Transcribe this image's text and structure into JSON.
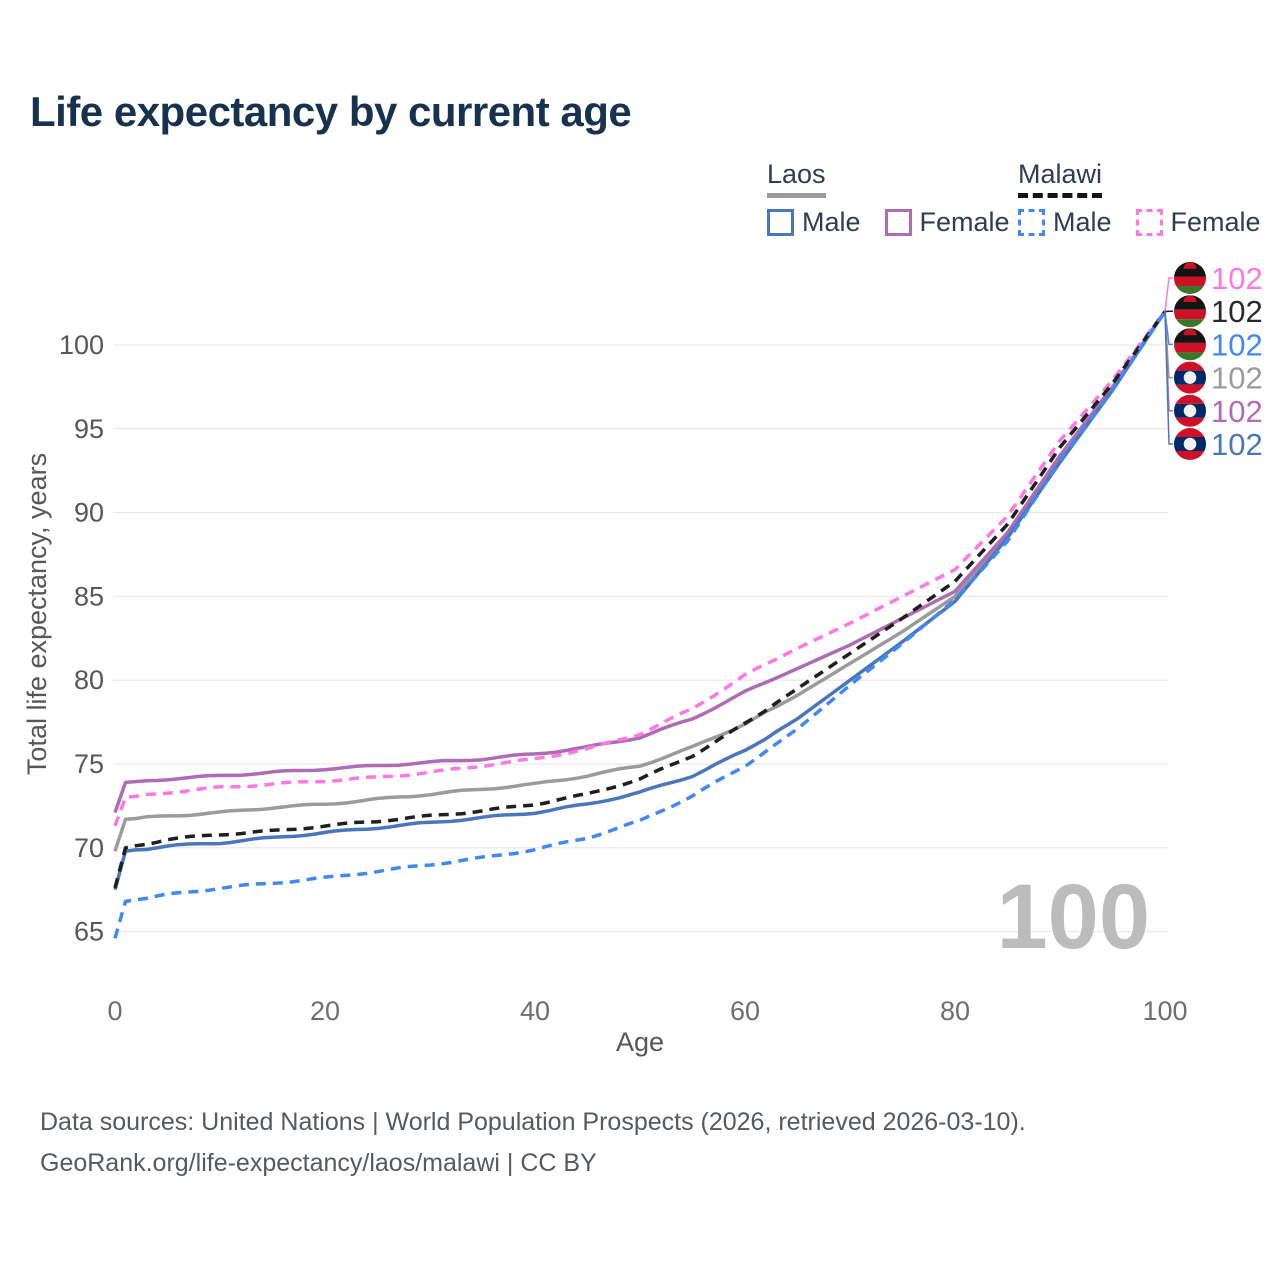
{
  "title": "Life expectancy by current age",
  "legend": {
    "groups": [
      {
        "name": "Laos",
        "line_style": "solid",
        "underline_color": "#9a9a9a",
        "items": [
          {
            "label": "Male",
            "color": "#4a77b9",
            "dashed": false
          },
          {
            "label": "Female",
            "color": "#af6cb4",
            "dashed": false
          }
        ]
      },
      {
        "name": "Malawi",
        "line_style": "dashed",
        "underline_color": "#141414",
        "items": [
          {
            "label": "Male",
            "color": "#4188f2",
            "dashed": true
          },
          {
            "label": "Female",
            "color": "#ff78e1",
            "dashed": true
          }
        ]
      }
    ]
  },
  "chart_data": {
    "type": "line",
    "title": "Life expectancy by current age",
    "xlabel": "Age",
    "ylabel": "Total life expectancy, years",
    "xticks": [
      0,
      20,
      40,
      60,
      80,
      100
    ],
    "yticks": [
      65,
      70,
      75,
      80,
      85,
      90,
      95,
      100
    ],
    "xlim": [
      0,
      100
    ],
    "ylim": [
      63.5,
      103
    ],
    "grid": "horizontal-only",
    "legend_position": "top-right",
    "watermark": "100",
    "x": [
      0,
      1,
      5,
      10,
      15,
      20,
      25,
      30,
      35,
      40,
      45,
      50,
      55,
      60,
      65,
      70,
      75,
      80,
      85,
      90,
      95,
      100
    ],
    "series": [
      {
        "name": "Malawi Female",
        "country": "Malawi",
        "sex": "Female",
        "color": "#ff78e1",
        "dashed": true,
        "flag": "malawi-flag-icon",
        "end_label": "102",
        "values": [
          71.3,
          73.0,
          73.3,
          73.6,
          73.8,
          74.0,
          74.2,
          74.5,
          74.9,
          75.3,
          75.9,
          76.8,
          78.3,
          80.3,
          81.9,
          83.4,
          85.0,
          86.6,
          89.8,
          94.3,
          97.9,
          102
        ]
      },
      {
        "name": "Malawi",
        "country": "Malawi",
        "sex": "Both",
        "color": "#1f1f1f",
        "dashed": true,
        "flag": "malawi-flag-icon",
        "end_label": "102",
        "values": [
          67.6,
          70.0,
          70.5,
          70.8,
          71.0,
          71.3,
          71.6,
          71.9,
          72.2,
          72.6,
          73.2,
          74.1,
          75.5,
          77.4,
          79.5,
          81.6,
          83.7,
          85.9,
          89.3,
          93.9,
          97.7,
          102
        ]
      },
      {
        "name": "Malawi Male",
        "country": "Malawi",
        "sex": "Male",
        "color": "#4188f2",
        "dashed": true,
        "flag": "malawi-flag-icon",
        "end_label": "102",
        "values": [
          64.6,
          66.8,
          67.2,
          67.6,
          67.9,
          68.2,
          68.6,
          69.0,
          69.4,
          69.9,
          70.6,
          71.6,
          73.1,
          74.9,
          77.1,
          79.7,
          82.2,
          84.8,
          88.3,
          93.1,
          97.3,
          102
        ]
      },
      {
        "name": "Laos",
        "country": "Laos",
        "sex": "Both",
        "color": "#9b9b9b",
        "dashed": false,
        "flag": "laos-flag-icon",
        "end_label": "102",
        "values": [
          69.8,
          71.7,
          71.9,
          72.1,
          72.4,
          72.6,
          72.9,
          73.2,
          73.5,
          73.8,
          74.3,
          74.9,
          76.0,
          77.4,
          79.1,
          81.0,
          82.9,
          85.0,
          88.6,
          93.3,
          97.4,
          102
        ]
      },
      {
        "name": "Laos Female",
        "country": "Laos",
        "sex": "Female",
        "color": "#af6cb4",
        "dashed": false,
        "flag": "laos-flag-icon",
        "end_label": "102",
        "values": [
          72.1,
          73.9,
          74.1,
          74.3,
          74.5,
          74.7,
          74.9,
          75.1,
          75.3,
          75.6,
          76.0,
          76.6,
          77.7,
          79.3,
          80.7,
          82.1,
          83.7,
          85.3,
          88.8,
          93.4,
          97.5,
          102
        ]
      },
      {
        "name": "Laos Male",
        "country": "Laos",
        "sex": "Male",
        "color": "#4a77b9",
        "dashed": false,
        "flag": "laos-flag-icon",
        "end_label": "102",
        "values": [
          67.5,
          69.8,
          70.1,
          70.3,
          70.6,
          70.9,
          71.2,
          71.5,
          71.8,
          72.1,
          72.6,
          73.3,
          74.3,
          75.8,
          77.7,
          80.0,
          82.3,
          84.7,
          88.5,
          93.0,
          97.3,
          102
        ]
      }
    ]
  },
  "footer": {
    "line1": "Data sources: United Nations | World Population Prospects (2026, retrieved 2026-03-10).",
    "line2": "GeoRank.org/life-expectancy/laos/malawi | CC BY"
  }
}
